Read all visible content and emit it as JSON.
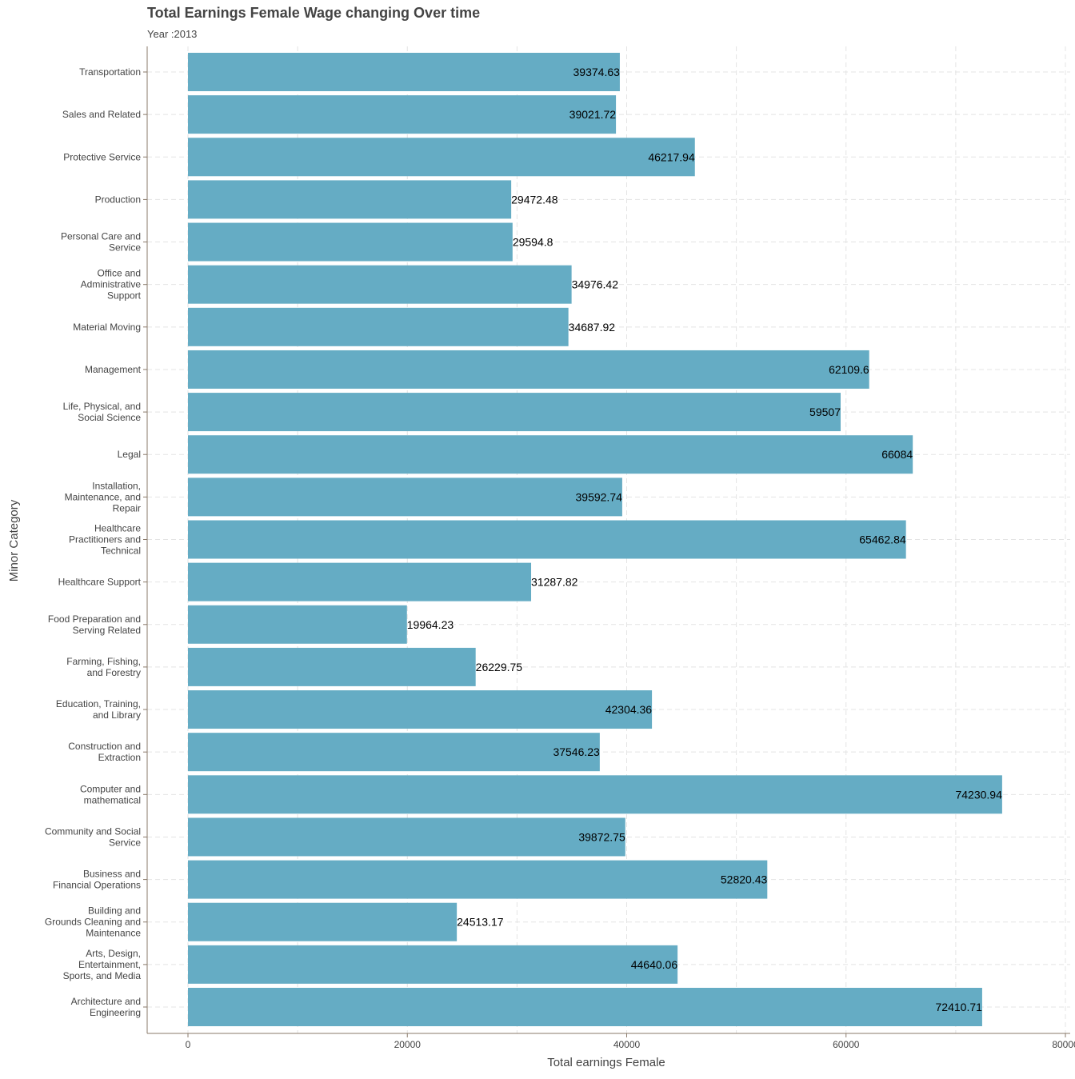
{
  "chart_data": {
    "type": "bar",
    "orientation": "horizontal",
    "title": "Total Earnings Female Wage changing Over time",
    "subtitle": "Year :2013",
    "xlabel": "Total earnings Female",
    "ylabel": "Minor Category",
    "xlim": [
      0,
      80000
    ],
    "xticks": [
      0,
      20000,
      40000,
      60000,
      80000
    ],
    "xtick_labels": [
      "0",
      "20000",
      "40000",
      "60000",
      "80000"
    ],
    "grid": true,
    "bar_color": "#65ACC4",
    "categories": [
      "Transportation",
      "Sales and Related",
      "Protective Service",
      "Production",
      "Personal Care and Service",
      "Office and Administrative Support",
      "Material Moving",
      "Management",
      "Life, Physical, and Social Science",
      "Legal",
      "Installation, Maintenance, and Repair",
      "Healthcare Practitioners and Technical",
      "Healthcare Support",
      "Food Preparation and Serving Related",
      "Farming, Fishing, and Forestry",
      "Education, Training, and Library",
      "Construction and Extraction",
      "Computer and mathematical",
      "Community and Social Service",
      "Business and Financial Operations",
      "Building and Grounds Cleaning and Maintenance",
      "Arts, Design, Entertainment, Sports, and Media",
      "Architecture and Engineering"
    ],
    "category_lines": [
      [
        "Transportation"
      ],
      [
        "Sales and Related"
      ],
      [
        "Protective Service"
      ],
      [
        "Production"
      ],
      [
        "Personal Care and",
        "Service"
      ],
      [
        "Office and",
        "Administrative",
        "Support"
      ],
      [
        "Material Moving"
      ],
      [
        "Management"
      ],
      [
        "Life, Physical, and",
        "Social Science"
      ],
      [
        "Legal"
      ],
      [
        "Installation,",
        "Maintenance, and",
        "Repair"
      ],
      [
        "Healthcare",
        "Practitioners and",
        "Technical"
      ],
      [
        "Healthcare Support"
      ],
      [
        "Food Preparation and",
        "Serving Related"
      ],
      [
        "Farming, Fishing,",
        "and Forestry"
      ],
      [
        "Education, Training,",
        "and Library"
      ],
      [
        "Construction and",
        "Extraction"
      ],
      [
        "Computer and",
        "mathematical"
      ],
      [
        "Community and Social",
        "Service"
      ],
      [
        "Business and",
        "Financial Operations"
      ],
      [
        "Building and",
        "Grounds Cleaning and",
        "Maintenance"
      ],
      [
        "Arts, Design,",
        "Entertainment,",
        "Sports, and Media"
      ],
      [
        "Architecture and",
        "Engineering"
      ]
    ],
    "values": [
      39374.63,
      39021.72,
      46217.94,
      29472.48,
      29594.8,
      34976.42,
      34687.92,
      62109.6,
      59507,
      66084,
      39592.74,
      65462.84,
      31287.82,
      19964.23,
      26229.75,
      42304.36,
      37546.23,
      74230.94,
      39872.75,
      52820.43,
      24513.17,
      44640.06,
      72410.71
    ],
    "value_labels": [
      "39374.63",
      "39021.72",
      "46217.94",
      "29472.48",
      "29594.8",
      "34976.42",
      "34687.92",
      "62109.6",
      "59507",
      "66084",
      "39592.74",
      "65462.84",
      "31287.82",
      "19964.23",
      "26229.75",
      "42304.36",
      "37546.23",
      "74230.94",
      "39872.75",
      "52820.43",
      "24513.17",
      "44640.06",
      "72410.71"
    ],
    "label_inside_threshold": 36000
  }
}
